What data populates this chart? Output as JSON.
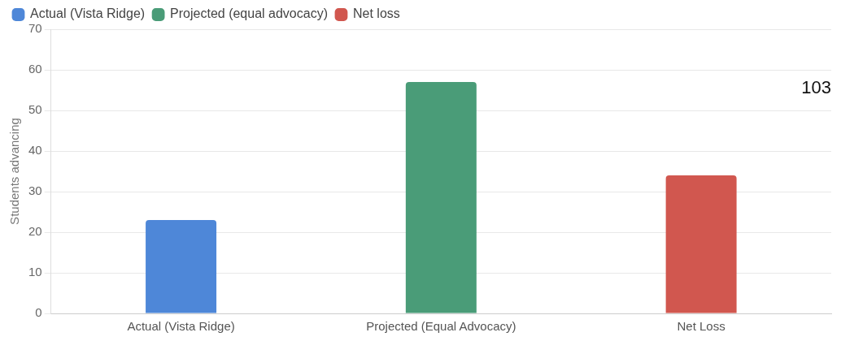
{
  "chart_data": {
    "type": "bar",
    "ylabel": "Students advancing",
    "categories": [
      "Actual (Vista Ridge)",
      "Projected (Equal Advocacy)",
      "Net Loss"
    ],
    "series": [
      {
        "name": "Actual (Vista Ridge)",
        "color": "#4e87d8",
        "values": [
          23,
          null,
          null
        ]
      },
      {
        "name": "Projected (equal advocacy)",
        "color": "#4a9c78",
        "values": [
          null,
          57,
          null
        ]
      },
      {
        "name": "Net loss",
        "color": "#d1574f",
        "values": [
          null,
          null,
          34
        ]
      }
    ],
    "ylim": [
      0,
      70
    ],
    "yticks": [
      0,
      10,
      20,
      30,
      40,
      50,
      60,
      70
    ],
    "grid": "y",
    "legend": "top left",
    "annotations": [
      "103"
    ]
  }
}
